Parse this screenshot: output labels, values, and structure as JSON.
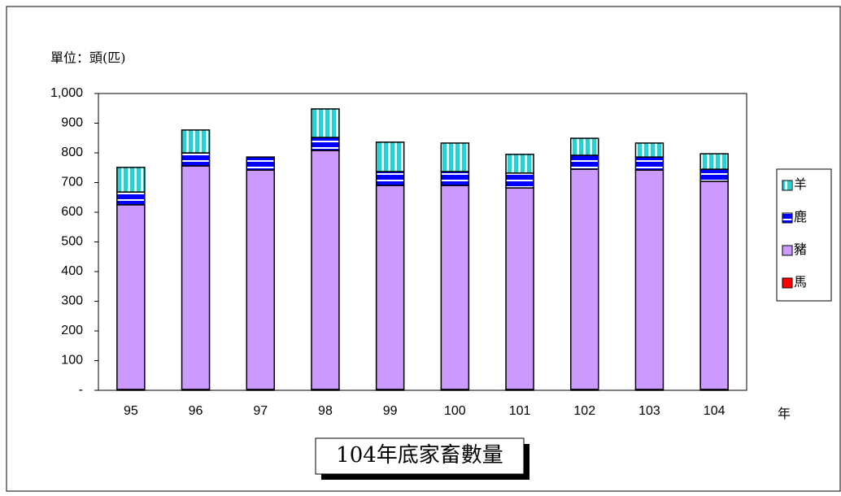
{
  "chart_data": {
    "type": "bar",
    "stacked": true,
    "title": "104年底家畜數量",
    "y_label": "單位：頭(匹)",
    "x_label": "年",
    "categories": [
      "95",
      "96",
      "97",
      "98",
      "99",
      "100",
      "101",
      "102",
      "103",
      "104"
    ],
    "series": [
      {
        "name": "馬",
        "color": "#ff0000",
        "values": [
          3,
          3,
          3,
          3,
          3,
          3,
          3,
          3,
          3,
          3
        ]
      },
      {
        "name": "豬",
        "color": "#cc99ff",
        "values": [
          622,
          753,
          739,
          805,
          687,
          687,
          679,
          742,
          739,
          701
        ]
      },
      {
        "name": "鹿",
        "color": "#0000ff",
        "values": [
          43,
          44,
          44,
          44,
          47,
          47,
          50,
          47,
          44,
          41
        ]
      },
      {
        "name": "羊",
        "color": "#33cccc",
        "values": [
          83,
          77,
          0,
          96,
          99,
          96,
          63,
          57,
          47,
          52
        ]
      }
    ],
    "ylim": [
      0,
      1000
    ],
    "yticks": [
      {
        "value": 0,
        "label": "-"
      },
      100,
      200,
      300,
      400,
      500,
      600,
      700,
      800,
      900,
      {
        "value": 1000,
        "label": "1,000"
      }
    ]
  }
}
